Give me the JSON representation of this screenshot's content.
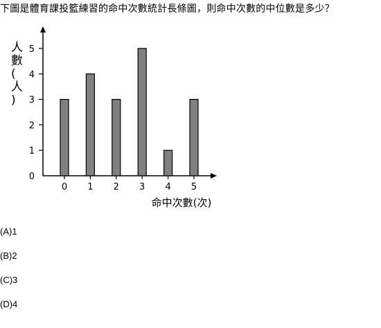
{
  "question": "下圖是體育課投籃練習的命中次數統計長條圖，則命中次數的中位數是多少？",
  "chart_data": {
    "type": "bar",
    "categories": [
      "0",
      "1",
      "2",
      "3",
      "4",
      "5"
    ],
    "values": [
      3,
      4,
      3,
      5,
      1,
      3
    ],
    "y_ticks": [
      "0",
      "1",
      "2",
      "3",
      "4",
      "5"
    ],
    "ylim": [
      0,
      5
    ],
    "xlabel": "命中次數(次)",
    "ylabel": "人數(人)",
    "grid": false,
    "bar_color": "#808080",
    "bar_stroke": "#000000"
  },
  "options": [
    {
      "label": "(A)1"
    },
    {
      "label": "(B)2"
    },
    {
      "label": "(C)3"
    },
    {
      "label": "(D)4"
    }
  ]
}
